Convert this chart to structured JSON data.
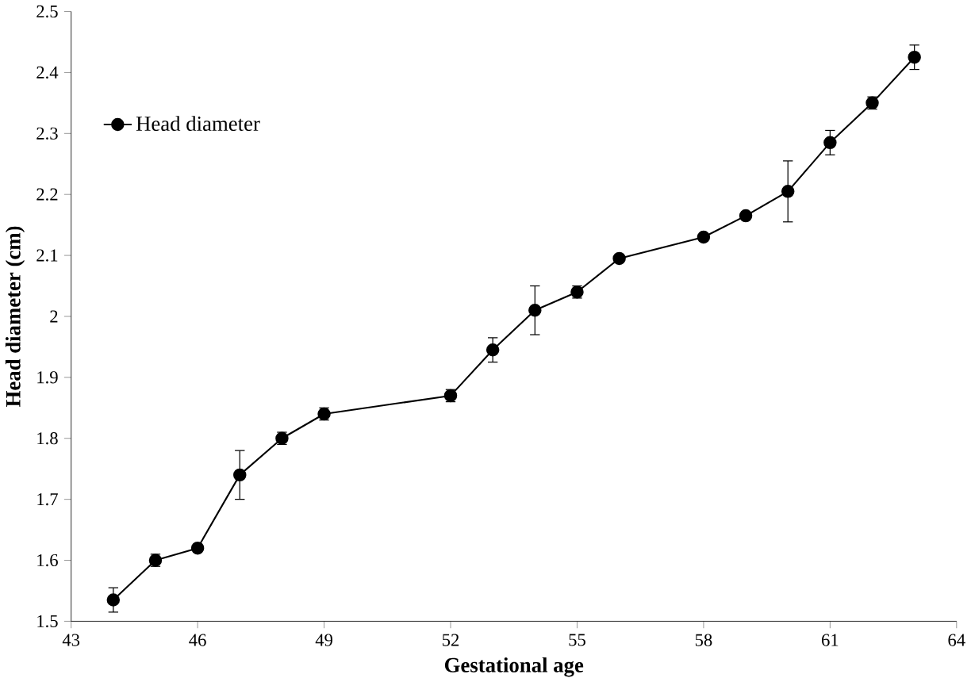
{
  "chart_data": {
    "type": "line",
    "xlabel": "Gestational age",
    "ylabel": "Head diameter (cm)",
    "x": [
      44,
      45,
      46,
      47,
      48,
      49,
      52,
      53,
      54,
      55,
      56,
      58,
      59,
      60,
      61,
      62,
      63
    ],
    "series": [
      {
        "name": "Head diameter",
        "color": "#000000",
        "values": [
          1.535,
          1.6,
          1.62,
          1.74,
          1.8,
          1.84,
          1.87,
          1.945,
          2.01,
          2.04,
          2.095,
          2.13,
          2.165,
          2.205,
          2.285,
          2.35,
          2.425
        ],
        "errors": [
          0.02,
          0.01,
          null,
          0.04,
          0.01,
          0.01,
          0.01,
          0.02,
          0.04,
          0.01,
          null,
          null,
          null,
          0.05,
          0.02,
          0.01,
          0.02
        ]
      }
    ],
    "xlim": [
      43,
      64
    ],
    "xticks": [
      43,
      46,
      49,
      52,
      55,
      58,
      61,
      64
    ],
    "ylim": [
      1.5,
      2.5
    ],
    "yticks": [
      1.5,
      1.6,
      1.7,
      1.8,
      1.9,
      2,
      2.1,
      2.2,
      2.3,
      2.4,
      2.5
    ],
    "grid": false,
    "legend": "top left",
    "marker": "circle",
    "line_style": "solid"
  }
}
